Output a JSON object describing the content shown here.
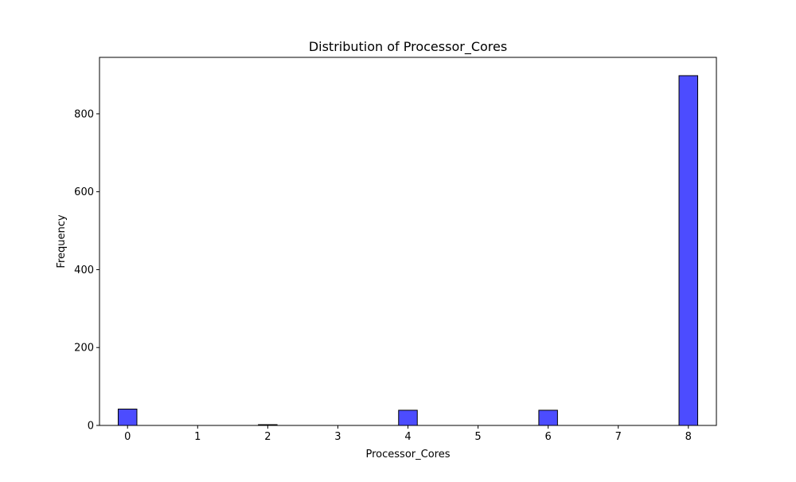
{
  "chart_data": {
    "type": "bar",
    "title": "Distribution of Processor_Cores",
    "xlabel": "Processor_Cores",
    "ylabel": "Frequency",
    "xlim": [
      -0.4,
      8.4
    ],
    "ylim": [
      0,
      945
    ],
    "xticks": [
      0,
      1,
      2,
      3,
      4,
      5,
      6,
      7,
      8
    ],
    "yticks": [
      0,
      200,
      400,
      600,
      800
    ],
    "bin_width": 0.2667,
    "bins": [
      {
        "x": 0,
        "count": 42
      },
      {
        "x": 2,
        "count": 2
      },
      {
        "x": 4,
        "count": 39
      },
      {
        "x": 6,
        "count": 39
      },
      {
        "x": 8,
        "count": 898
      }
    ],
    "bar_color": "#0000ff",
    "bar_opacity": 0.7,
    "edge_color": "#000000",
    "grid": false,
    "legend": "none"
  }
}
